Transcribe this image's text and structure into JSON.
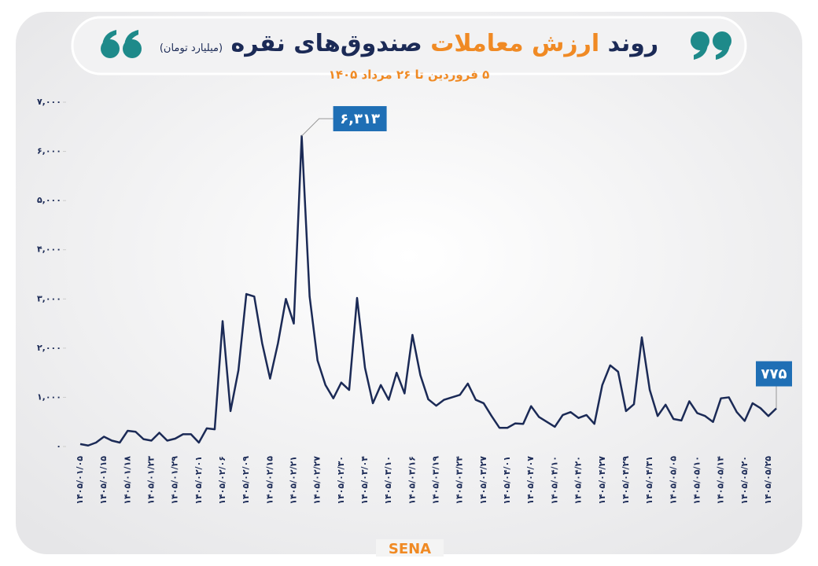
{
  "chart_data": {
    "type": "line",
    "title": [
      "روند",
      "ارزش معاملات",
      "صندوق‌های نقره"
    ],
    "title_unit": "(میلیارد تومان)",
    "subtitle": "۵ فروردین تا ۲۶ مرداد ۱۴۰۵",
    "footer": "SENA",
    "categories": [
      "۱۴۰۵/۰۱/۰۵",
      null,
      null,
      "۱۴۰۵/۰۱/۱۵",
      null,
      null,
      "۱۴۰۵/۰۱/۱۸",
      null,
      null,
      "۱۴۰۵/۰۱/۲۳",
      null,
      null,
      "۱۴۰۵/۰۱/۲۹",
      null,
      null,
      "۱۴۰۵/۰۲/۰۱",
      null,
      null,
      "۱۴۰۵/۰۲/۰۶",
      null,
      null,
      "۱۴۰۵/۰۲/۰۹",
      null,
      null,
      "۱۴۰۵/۰۲/۱۵",
      null,
      null,
      "۱۴۰۵/۰۲/۲۱",
      null,
      null,
      "۱۴۰۵/۰۲/۲۷",
      null,
      null,
      "۱۴۰۵/۰۲/۳۰",
      null,
      null,
      "۱۴۰۵/۰۳/۰۴",
      null,
      null,
      "۱۴۰۵/۰۳/۱۰",
      null,
      null,
      "۱۴۰۵/۰۳/۱۶",
      null,
      null,
      "۱۴۰۵/۰۳/۱۹",
      null,
      null,
      "۱۴۰۵/۰۳/۲۴",
      null,
      null,
      "۱۴۰۵/۰۳/۲۷",
      null,
      null,
      "۱۴۰۵/۰۴/۰۱",
      null,
      null,
      "۱۴۰۵/۰۴/۰۷",
      null,
      null,
      "۱۴۰۵/۰۴/۱۰",
      null,
      null,
      "۱۴۰۵/۰۴/۲۰",
      null,
      null,
      "۱۴۰۵/۰۴/۲۷",
      null,
      null,
      "۱۴۰۵/۰۴/۲۹",
      null,
      null,
      "۱۴۰۵/۰۴/۳۱",
      null,
      null,
      "۱۴۰۵/۰۵/۰۵",
      null,
      null,
      "۱۴۰۵/۰۵/۱۰",
      null,
      null,
      "۱۴۰۵/۰۵/۱۴",
      null,
      null,
      "۱۴۰۵/۰۵/۲۰",
      null,
      null,
      "۱۴۰۵/۰۵/۲۵",
      null
    ],
    "values": [
      50,
      20,
      80,
      200,
      120,
      80,
      320,
      300,
      150,
      120,
      280,
      120,
      160,
      250,
      250,
      80,
      370,
      350,
      2550,
      720,
      1550,
      3100,
      3050,
      2100,
      1380,
      2100,
      3000,
      2500,
      6313,
      3050,
      1750,
      1250,
      980,
      1300,
      1150,
      3020,
      1600,
      880,
      1250,
      950,
      1500,
      1080,
      2270,
      1450,
      960,
      830,
      950,
      1000,
      1050,
      1280,
      950,
      880,
      620,
      380,
      380,
      470,
      460,
      820,
      600,
      500,
      400,
      640,
      700,
      580,
      640,
      460,
      1250,
      1650,
      1520,
      720,
      860,
      2220,
      1150,
      620,
      850,
      560,
      530,
      920,
      680,
      620,
      500,
      980,
      1000,
      700,
      520,
      880,
      780,
      620,
      775
    ],
    "value_labels": [
      null,
      null,
      null,
      null,
      null,
      null,
      null,
      null,
      null,
      null,
      null,
      null,
      null,
      null,
      null,
      null,
      null,
      null,
      null,
      null,
      null,
      null,
      null,
      null,
      null,
      null,
      null,
      null,
      "۶,۳۱۳",
      null,
      null,
      null,
      null,
      null,
      null,
      null,
      null,
      null,
      null,
      null,
      null,
      null,
      null,
      null,
      null,
      null,
      null,
      null,
      null,
      null,
      null,
      null,
      null,
      null,
      null,
      null,
      null,
      null,
      null,
      null,
      null,
      null,
      null,
      null,
      null,
      null,
      null,
      null,
      null,
      null,
      null,
      null,
      null,
      null,
      null,
      null,
      null,
      null,
      null,
      null,
      null,
      null,
      null,
      null,
      null,
      null,
      null,
      null,
      "۷۷۵"
    ],
    "color": "#1b2a56",
    "ylim": [
      0,
      7000
    ],
    "yticks": [
      {
        "value": 0,
        "label": "۰"
      },
      {
        "value": 1000,
        "label": "۱,۰۰۰"
      },
      {
        "value": 2000,
        "label": "۲,۰۰۰"
      },
      {
        "value": 3000,
        "label": "۳,۰۰۰"
      },
      {
        "value": 4000,
        "label": "۴,۰۰۰"
      },
      {
        "value": 5000,
        "label": "۵,۰۰۰"
      },
      {
        "value": 6000,
        "label": "۶,۰۰۰"
      },
      {
        "value": 7000,
        "label": "۷,۰۰۰"
      }
    ],
    "grid": false
  }
}
